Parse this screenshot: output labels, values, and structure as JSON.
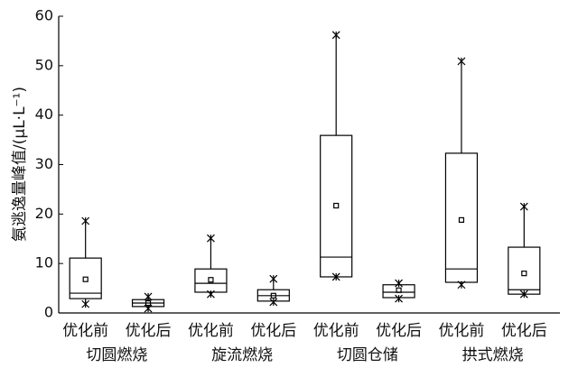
{
  "chart_data": {
    "type": "box",
    "ylabel": "氨逃逸量峰值/(μL·L⁻¹)",
    "categories": [
      "优化前",
      "优化后",
      "优化前",
      "优化后",
      "优化前",
      "优化后",
      "优化前",
      "优化后"
    ],
    "groups": [
      "切圆燃烧",
      "旋流燃烧",
      "切圆仓储",
      "拱式燃烧"
    ],
    "boxes": [
      {
        "min": 1.8,
        "q1": 2.9,
        "median": 4.0,
        "q3": 11.1,
        "max": 18.6,
        "mean": 6.8
      },
      {
        "min": 0.9,
        "q1": 1.3,
        "median": 2.0,
        "q3": 2.7,
        "max": 3.3,
        "mean": 2.0
      },
      {
        "min": 3.8,
        "q1": 4.2,
        "median": 6.0,
        "q3": 8.9,
        "max": 15.1,
        "mean": 6.7
      },
      {
        "min": 2.2,
        "q1": 2.4,
        "median": 3.5,
        "q3": 4.7,
        "max": 6.9,
        "mean": 3.5
      },
      {
        "min": 7.3,
        "q1": 7.3,
        "median": 11.3,
        "q3": 35.9,
        "max": 56.2,
        "mean": 21.7
      },
      {
        "min": 2.9,
        "q1": 3.1,
        "median": 4.2,
        "q3": 5.7,
        "max": 6.0,
        "mean": 4.6
      },
      {
        "min": 5.7,
        "q1": 6.2,
        "median": 8.9,
        "q3": 32.3,
        "max": 50.9,
        "mean": 18.8
      },
      {
        "min": 3.8,
        "q1": 3.8,
        "median": 4.7,
        "q3": 13.3,
        "max": 21.5,
        "mean": 8.0
      }
    ],
    "ylim": [
      0,
      60
    ],
    "yticks": [
      0,
      10,
      20,
      30,
      40,
      50,
      60
    ]
  }
}
